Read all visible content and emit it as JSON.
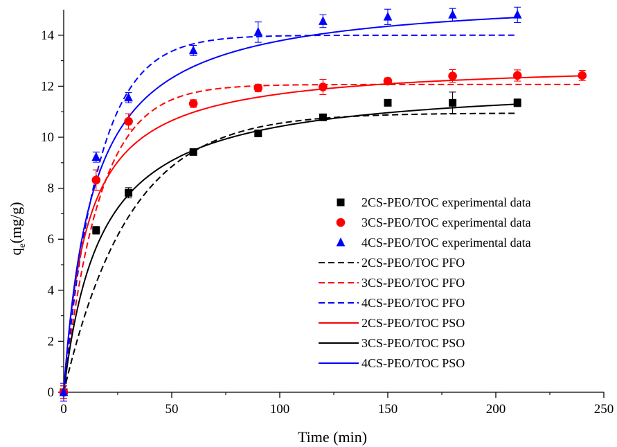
{
  "chart_data": {
    "type": "scatter",
    "xlabel": "Time (min)",
    "ylabel_main": "q",
    "ylabel_sub": "e",
    "ylabel_unit": "(mg/g)",
    "xlim": [
      0,
      250
    ],
    "ylim": [
      0,
      15
    ],
    "xticks": [
      0,
      50,
      100,
      150,
      200,
      250
    ],
    "yticks": [
      0,
      2,
      4,
      6,
      8,
      10,
      12,
      14
    ],
    "grid": false,
    "legend_position": "center-right",
    "scatter_series": [
      {
        "name": "2CS-PEO/TOC experimental data",
        "marker": "square",
        "color": "#000000",
        "x": [
          0,
          15,
          30,
          60,
          90,
          120,
          150,
          180,
          210
        ],
        "y": [
          0,
          6.35,
          7.82,
          9.42,
          10.15,
          10.78,
          11.35,
          11.35,
          11.35
        ],
        "err": [
          0.25,
          0.15,
          0.2,
          0.12,
          0.12,
          0.12,
          0.12,
          0.42,
          0.15
        ]
      },
      {
        "name": "3CS-PEO/TOC experimental data",
        "marker": "circle",
        "color": "#ff0000",
        "x": [
          0,
          15,
          30,
          60,
          90,
          120,
          150,
          180,
          210,
          240
        ],
        "y": [
          0,
          8.32,
          10.62,
          11.32,
          11.93,
          11.97,
          12.2,
          12.4,
          12.42,
          12.42
        ],
        "err": [
          0.25,
          0.4,
          0.3,
          0.15,
          0.15,
          0.3,
          0.12,
          0.25,
          0.22,
          0.2
        ]
      },
      {
        "name": "4CS-PEO/TOC experimental data",
        "marker": "triangle",
        "color": "#0000ff",
        "x": [
          0,
          15,
          30,
          60,
          90,
          120,
          150,
          180,
          210
        ],
        "y": [
          0,
          9.22,
          11.55,
          13.4,
          14.12,
          14.55,
          14.72,
          14.8,
          14.8
        ],
        "err": [
          0.35,
          0.2,
          0.2,
          0.2,
          0.4,
          0.25,
          0.3,
          0.25,
          0.3
        ]
      }
    ],
    "line_series": [
      {
        "name": "2CS-PEO/TOC PFO",
        "color": "#000000",
        "dash": true,
        "model": "pfo",
        "qe": 10.95,
        "k": 0.033,
        "xmax": 210
      },
      {
        "name": "3CS-PEO/TOC PFO",
        "color": "#ff0000",
        "dash": true,
        "model": "pfo",
        "qe": 12.07,
        "k": 0.06,
        "xmax": 240
      },
      {
        "name": "4CS-PEO/TOC PFO",
        "color": "#0000ff",
        "dash": true,
        "model": "pfo",
        "qe": 14.0,
        "k": 0.062,
        "xmax": 210
      },
      {
        "name": "2CS-PEO/TOC PSO",
        "color": "#ff0000",
        "dash": false,
        "model": "pso",
        "qe": 12.97,
        "k": 0.00708,
        "xmax": 240
      },
      {
        "name": "3CS-PEO/TOC PSO",
        "color": "#000000",
        "dash": false,
        "model": "pso",
        "qe": 12.23,
        "k": 0.00471,
        "xmax": 210
      },
      {
        "name": "4CS-PEO/TOC PSO",
        "color": "#0000ff",
        "dash": false,
        "model": "pso",
        "qe": 15.64,
        "k": 0.00474,
        "xmax": 210
      }
    ]
  }
}
